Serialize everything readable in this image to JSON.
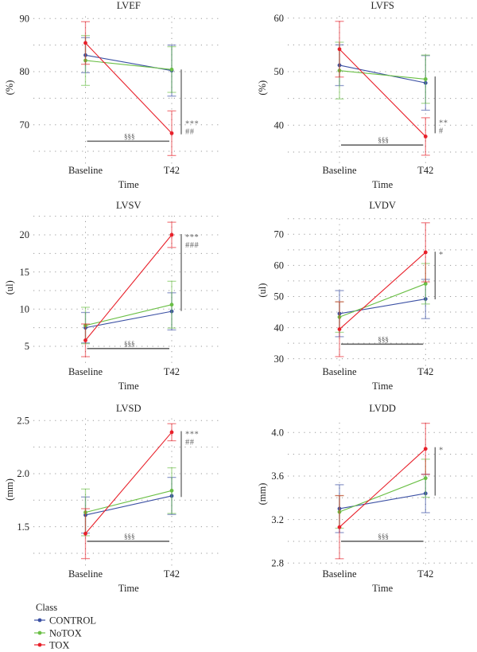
{
  "legend": {
    "title": "Class",
    "items": [
      {
        "name": "CONTROL",
        "color": "#3a4fa3"
      },
      {
        "name": "NoTOX",
        "color": "#6abf45"
      },
      {
        "name": "TOX",
        "color": "#e8202a"
      }
    ]
  },
  "chart_data": [
    {
      "type": "line",
      "title": "LVEF",
      "xlabel": "Time",
      "ylabel": "(%)",
      "categories": [
        "Baseline",
        "T42"
      ],
      "ylim": [
        63,
        91
      ],
      "yticks": [
        70,
        80,
        90
      ],
      "ytick_labels": [
        "70",
        "80",
        "90"
      ],
      "ygrid": [
        65,
        70,
        75,
        80,
        85,
        90
      ],
      "grid": true,
      "series": [
        {
          "name": "CONTROL",
          "color": "#3a4fa3",
          "values": [
            83.1,
            80.2
          ],
          "errors": [
            3.3,
            4.8
          ]
        },
        {
          "name": "NoTOX",
          "color": "#6abf45",
          "values": [
            82.1,
            80.4
          ],
          "errors": [
            4.7,
            4.3
          ]
        },
        {
          "name": "TOX",
          "color": "#e8202a",
          "values": [
            85.4,
            68.4
          ],
          "errors": [
            4.0,
            4.2
          ]
        }
      ],
      "annotations": {
        "vbar": {
          "from": 80.4,
          "to": 68.2,
          "labels": [
            "***",
            "##"
          ]
        },
        "hbar": {
          "y": 66.9,
          "label": "§§§"
        }
      }
    },
    {
      "type": "line",
      "title": "LVFS",
      "xlabel": "Time",
      "ylabel": "(%)",
      "categories": [
        "Baseline",
        "T42"
      ],
      "ylim": [
        33,
        61
      ],
      "yticks": [
        40,
        50,
        60
      ],
      "ytick_labels": [
        "40",
        "50",
        "60"
      ],
      "ygrid": [
        35,
        40,
        45,
        50,
        55,
        60
      ],
      "grid": true,
      "series": [
        {
          "name": "CONTROL",
          "color": "#3a4fa3",
          "values": [
            51.2,
            47.9
          ],
          "errors": [
            3.8,
            5.1
          ]
        },
        {
          "name": "NoTOX",
          "color": "#6abf45",
          "values": [
            50.2,
            48.6
          ],
          "errors": [
            5.3,
            4.5
          ]
        },
        {
          "name": "TOX",
          "color": "#e8202a",
          "values": [
            54.2,
            37.9
          ],
          "errors": [
            5.2,
            3.5
          ]
        }
      ],
      "annotations": {
        "vbar": {
          "from": 49.1,
          "to": 38.5,
          "labels": [
            "**",
            "#"
          ]
        },
        "hbar": {
          "y": 36.3,
          "label": "§§§"
        }
      }
    },
    {
      "type": "line",
      "title": "LVSV",
      "xlabel": "Time",
      "ylabel": "(ul)",
      "categories": [
        "Baseline",
        "T42"
      ],
      "ylim": [
        2.8,
        23
      ],
      "yticks": [
        5,
        10,
        15,
        20
      ],
      "ytick_labels": [
        "5",
        "10",
        "15",
        "20"
      ],
      "ygrid": [
        5,
        7.5,
        10,
        12.5,
        15,
        17.5,
        20,
        22.5
      ],
      "grid": true,
      "series": [
        {
          "name": "CONTROL",
          "color": "#3a4fa3",
          "values": [
            7.5,
            9.7
          ],
          "errors": [
            2.05,
            2.5
          ]
        },
        {
          "name": "NoTOX",
          "color": "#6abf45",
          "values": [
            7.8,
            10.6
          ],
          "errors": [
            2.45,
            3.15
          ]
        },
        {
          "name": "TOX",
          "color": "#e8202a",
          "values": [
            5.8,
            20.0
          ],
          "errors": [
            2.2,
            1.7
          ]
        }
      ],
      "annotations": {
        "vbar": {
          "from": 9.75,
          "to": 20.1,
          "labels": [
            "***",
            "###"
          ]
        },
        "hbar": {
          "y": 4.7,
          "label": "§§§"
        }
      }
    },
    {
      "type": "line",
      "title": "LVDV",
      "xlabel": "Time",
      "ylabel": "(ul)",
      "categories": [
        "Baseline",
        "T42"
      ],
      "ylim": [
        28,
        76
      ],
      "yticks": [
        30,
        40,
        50,
        60,
        70
      ],
      "ytick_labels": [
        "30",
        "40",
        "50",
        "60",
        "70"
      ],
      "ygrid": [
        30,
        35,
        40,
        45,
        50,
        55,
        60,
        65,
        70,
        75
      ],
      "grid": true,
      "series": [
        {
          "name": "CONTROL",
          "color": "#3a4fa3",
          "values": [
            44.5,
            49.2
          ],
          "errors": [
            7.4,
            6.3
          ]
        },
        {
          "name": "NoTOX",
          "color": "#6abf45",
          "values": [
            43.4,
            54.1
          ],
          "errors": [
            4.9,
            6.5
          ]
        },
        {
          "name": "TOX",
          "color": "#e8202a",
          "values": [
            39.5,
            64.2
          ],
          "errors": [
            8.8,
            9.5
          ]
        }
      ],
      "annotations": {
        "vbar": {
          "from": 49.1,
          "to": 64.4,
          "labels": [
            "*"
          ]
        },
        "hbar": {
          "y": 34.7,
          "label": "§§§"
        }
      }
    },
    {
      "type": "line",
      "title": "LVSD",
      "xlabel": "Time",
      "ylabel": "(mm)",
      "categories": [
        "Baseline",
        "T42"
      ],
      "ylim": [
        1.15,
        2.55
      ],
      "yticks": [
        1.5,
        2.0,
        2.5
      ],
      "ytick_labels": [
        "1.5",
        "2.0",
        "2.5"
      ],
      "ygrid": [
        1.25,
        1.5,
        1.75,
        2.0,
        2.25,
        2.5
      ],
      "grid": true,
      "series": [
        {
          "name": "CONTROL",
          "color": "#3a4fa3",
          "values": [
            1.61,
            1.79
          ],
          "errors": [
            0.17,
            0.175
          ]
        },
        {
          "name": "NoTOX",
          "color": "#6abf45",
          "values": [
            1.635,
            1.84
          ],
          "errors": [
            0.22,
            0.215
          ]
        },
        {
          "name": "TOX",
          "color": "#e8202a",
          "values": [
            1.435,
            2.39
          ],
          "errors": [
            0.235,
            0.08
          ]
        }
      ],
      "annotations": {
        "vbar": {
          "from": 1.78,
          "to": 2.4,
          "labels": [
            "***",
            "##"
          ]
        },
        "hbar": {
          "y": 1.363,
          "label": "§§§"
        }
      }
    },
    {
      "type": "line",
      "title": "LVDD",
      "xlabel": "Time",
      "ylabel": "(mm)",
      "categories": [
        "Baseline",
        "T42"
      ],
      "ylim": [
        2.75,
        4.12
      ],
      "yticks": [
        2.8,
        3.2,
        3.6,
        4.0
      ],
      "ytick_labels": [
        "2.8",
        "3.2",
        "3.6",
        "4.0"
      ],
      "ygrid": [
        2.8,
        3.0,
        3.2,
        3.4,
        3.6,
        3.8,
        4.0
      ],
      "grid": true,
      "series": [
        {
          "name": "CONTROL",
          "color": "#3a4fa3",
          "values": [
            3.3,
            3.44
          ],
          "errors": [
            0.22,
            0.177
          ]
        },
        {
          "name": "NoTOX",
          "color": "#6abf45",
          "values": [
            3.27,
            3.58
          ],
          "errors": [
            0.15,
            0.175
          ]
        },
        {
          "name": "TOX",
          "color": "#e8202a",
          "values": [
            3.13,
            3.85
          ],
          "errors": [
            0.29,
            0.235
          ]
        }
      ],
      "annotations": {
        "vbar": {
          "from": 3.42,
          "to": 3.865,
          "labels": [
            "*"
          ]
        },
        "hbar": {
          "y": 3.0,
          "label": "§§§"
        }
      }
    }
  ]
}
